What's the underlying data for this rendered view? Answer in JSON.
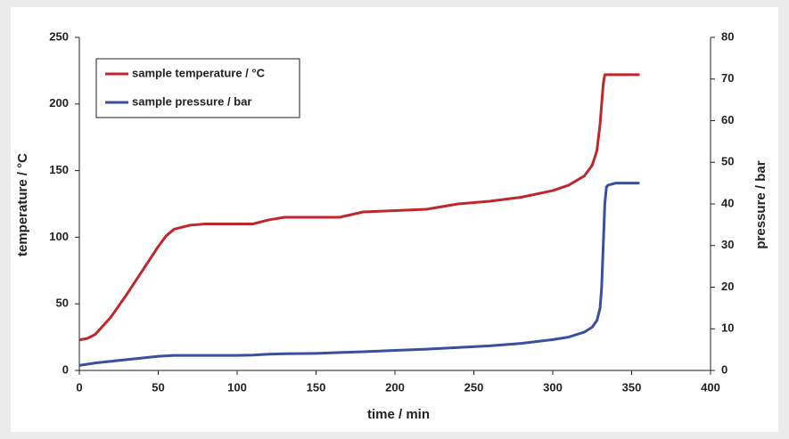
{
  "chart_data": {
    "type": "line",
    "xlabel": "time / min",
    "ylabel": "temperature / °C",
    "y2label": "pressure / bar",
    "x": [
      0,
      5,
      10,
      20,
      30,
      40,
      50,
      55,
      60,
      70,
      80,
      100,
      110,
      120,
      130,
      150,
      165,
      180,
      200,
      220,
      240,
      260,
      280,
      300,
      310,
      320,
      325,
      328,
      330,
      331,
      332,
      333,
      334,
      335,
      340,
      350,
      355
    ],
    "series": [
      {
        "name": "sample temperature / °C",
        "color": "#c0272d",
        "values": [
          23,
          24,
          27,
          40,
          57,
          75,
          93,
          101,
          106,
          109,
          110,
          110,
          110,
          113,
          115,
          115,
          115,
          119,
          120,
          121,
          125,
          127,
          130,
          135,
          139,
          146,
          154,
          165,
          185,
          200,
          215,
          222,
          222,
          222,
          222,
          222,
          222
        ]
      },
      {
        "name": "sample pressure / bar",
        "color": "#3a4fa0",
        "axis": "y2",
        "values": [
          1.2,
          1.5,
          1.8,
          2.2,
          2.6,
          3.0,
          3.4,
          3.5,
          3.6,
          3.6,
          3.6,
          3.6,
          3.7,
          3.9,
          4.0,
          4.1,
          4.3,
          4.5,
          4.8,
          5.1,
          5.5,
          5.9,
          6.5,
          7.4,
          8.0,
          9.2,
          10.4,
          12.0,
          15.0,
          20,
          30,
          40,
          44,
          44.5,
          45,
          45,
          45
        ]
      }
    ],
    "xlim": [
      0,
      400
    ],
    "xticks": [
      0,
      50,
      100,
      150,
      200,
      250,
      300,
      350,
      400
    ],
    "ylim": [
      0,
      250
    ],
    "yticks": [
      0,
      50,
      100,
      150,
      200,
      250
    ],
    "y2lim": [
      0,
      80
    ],
    "y2ticks": [
      0,
      10,
      20,
      30,
      40,
      50,
      60,
      70,
      80
    ],
    "legend": "upper left"
  }
}
